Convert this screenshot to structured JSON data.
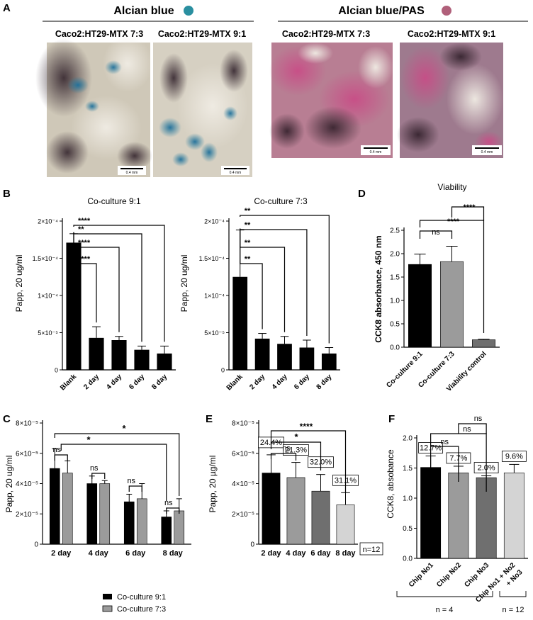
{
  "panel_a": {
    "letter": "A",
    "groups": [
      {
        "title": "Alcian blue",
        "color": "#2a8fa0",
        "images": [
          {
            "label": "Caco2:HT29-MTX 7:3",
            "scale": "0.4 mm"
          },
          {
            "label": "Caco2:HT29-MTX 9:1",
            "scale": "0.4 mm"
          }
        ]
      },
      {
        "title": "Alcian blue/PAS",
        "color": "#b0607a",
        "images": [
          {
            "label": "Caco2:HT29-MTX 7:3",
            "scale": "0.4 mm"
          },
          {
            "label": "Caco2:HT29-MTX 9:1",
            "scale": "0.4 mm"
          }
        ]
      }
    ]
  },
  "colors": {
    "black": "#000000",
    "dark_gray": "#6f6f6f",
    "mid_gray": "#9b9b9b",
    "light_gray": "#d4d4d4"
  },
  "chart_data": [
    {
      "id": "B1",
      "letter": "B",
      "type": "bar",
      "title": "Co-culture 9:1",
      "ylabel": "Papp, 20 ug/ml",
      "ylim": [
        0,
        0.0002
      ],
      "yticks": [
        0,
        5e-05,
        0.0001,
        0.00015,
        0.0002
      ],
      "ytick_labels": [
        "0",
        "5×10⁻⁵",
        "1×10⁻⁴",
        "1.5×10⁻⁴",
        "2×10⁻⁴"
      ],
      "categories": [
        "Blank",
        "2 day",
        "4 day",
        "6 day",
        "8 day"
      ],
      "values": [
        0.000171,
        4.3e-05,
        4e-05,
        2.7e-05,
        2.2e-05
      ],
      "errors": [
        1.2e-05,
        1.5e-05,
        5e-06,
        5e-06,
        1e-05
      ],
      "significance": [
        {
          "from": 0,
          "to": 1,
          "label": "****"
        },
        {
          "from": 0,
          "to": 2,
          "label": "****"
        },
        {
          "from": 0,
          "to": 3,
          "label": "**"
        },
        {
          "from": 0,
          "to": 4,
          "label": "****"
        }
      ]
    },
    {
      "id": "B2",
      "type": "bar",
      "title": "Co-culture 7:3",
      "ylabel": "Papp, 20 ug/ml",
      "ylim": [
        0,
        0.0002
      ],
      "yticks": [
        0,
        5e-05,
        0.0001,
        0.00015,
        0.0002
      ],
      "ytick_labels": [
        "0",
        "5×10⁻⁵",
        "1×10⁻⁴",
        "1.5×10⁻⁴",
        "2×10⁻⁴"
      ],
      "categories": [
        "Blank",
        "2 day",
        "4 day",
        "6 day",
        "8 day"
      ],
      "values": [
        0.000125,
        4.2e-05,
        3.5e-05,
        3e-05,
        2.2e-05
      ],
      "errors": [
        6.3e-05,
        7e-06,
        1e-05,
        1e-05,
        8e-06
      ],
      "significance": [
        {
          "from": 0,
          "to": 1,
          "label": "**"
        },
        {
          "from": 0,
          "to": 2,
          "label": "**"
        },
        {
          "from": 0,
          "to": 3,
          "label": "**"
        },
        {
          "from": 0,
          "to": 4,
          "label": "**"
        }
      ]
    },
    {
      "id": "D",
      "letter": "D",
      "type": "bar",
      "title": "Viability",
      "ylabel": "CCK8 absorbance, 450 nm",
      "ylim": [
        0,
        2.5
      ],
      "yticks": [
        0,
        0.5,
        1.0,
        1.5,
        2.0,
        2.5
      ],
      "ytick_labels": [
        "0.0",
        "0.5",
        "1.0",
        "1.5",
        "2.0",
        "2.5"
      ],
      "categories": [
        "Co-culture 9:1",
        "Co-culture 7:3",
        "Viability control"
      ],
      "values": [
        1.77,
        1.83,
        0.16
      ],
      "errors": [
        0.22,
        0.33,
        0.01
      ],
      "significance": [
        {
          "from": 0,
          "to": 1,
          "label": "ns"
        },
        {
          "from": 0,
          "to": 2,
          "label": "****"
        },
        {
          "from": 1,
          "to": 2,
          "label": "****"
        }
      ]
    },
    {
      "id": "C",
      "letter": "C",
      "type": "bar",
      "title": "",
      "ylabel": "Papp, 20 ug/ml",
      "ylim": [
        0,
        8e-05
      ],
      "yticks": [
        0,
        2e-05,
        4e-05,
        6e-05,
        8e-05
      ],
      "ytick_labels": [
        "0",
        "2×10⁻⁵",
        "4×10⁻⁵",
        "6×10⁻⁵",
        "8×10⁻⁵"
      ],
      "categories": [
        "2 day",
        "4 day",
        "6 day",
        "8 day"
      ],
      "series": [
        {
          "name": "Co-culture 9:1",
          "values": [
            5e-05,
            4e-05,
            2.8e-05,
            1.8e-05
          ],
          "errors": [
            1.3e-05,
            5e-06,
            5e-06,
            4e-06
          ]
        },
        {
          "name": "Co-culture 7:3",
          "values": [
            4.7e-05,
            4e-05,
            3e-05,
            2.2e-05
          ],
          "errors": [
            8e-06,
            2e-06,
            1e-05,
            8e-06
          ]
        }
      ],
      "significance": [
        {
          "label": "ns"
        },
        {
          "label": "ns"
        },
        {
          "label": "ns"
        },
        {
          "label": "ns"
        },
        {
          "label": "*"
        },
        {
          "label": "*"
        }
      ]
    },
    {
      "id": "E",
      "letter": "E",
      "type": "bar",
      "title": "",
      "ylabel": "Papp, 20 µg/ml",
      "ylim": [
        0,
        8e-05
      ],
      "yticks": [
        0,
        2e-05,
        4e-05,
        6e-05,
        8e-05
      ],
      "ytick_labels": [
        "0",
        "2×10⁻⁵",
        "4×10⁻⁵",
        "6×10⁻⁵",
        "8×10⁻⁵"
      ],
      "categories": [
        "2 day",
        "4 day",
        "6 day",
        "8 day"
      ],
      "values": [
        4.7e-05,
        4.4e-05,
        3.5e-05,
        2.6e-05
      ],
      "errors": [
        1.2e-05,
        1e-05,
        1.1e-05,
        8e-06
      ],
      "cv_labels": [
        "24.4%",
        "21.3%",
        "32.0%",
        "31.1%"
      ],
      "significance": [
        {
          "from": 0,
          "to": 1,
          "label": "ns"
        },
        {
          "from": 0,
          "to": 2,
          "label": "*"
        },
        {
          "from": 0,
          "to": 3,
          "label": "****"
        }
      ],
      "n_label": "n=12"
    },
    {
      "id": "F",
      "letter": "F",
      "type": "bar",
      "title": "",
      "ylabel": "CCK8, absobance",
      "ylim": [
        0,
        2.0
      ],
      "yticks": [
        0,
        0.5,
        1.0,
        1.5,
        2.0
      ],
      "ytick_labels": [
        "0.0",
        "0.5",
        "1.0",
        "1.5",
        "2.0"
      ],
      "categories": [
        "Chip No1",
        "Chip No2",
        "Chip No3",
        "Chip No1 + No2 + No3"
      ],
      "values": [
        1.51,
        1.42,
        1.34,
        1.42
      ],
      "errors": [
        0.19,
        0.11,
        0.03,
        0.14
      ],
      "cv_labels": [
        "12.7%",
        "7.7%",
        "2.0%",
        "9.6%"
      ],
      "significance": [
        {
          "from": 0,
          "to": 1,
          "label": "ns"
        },
        {
          "from": 0,
          "to": 2,
          "label": "ns"
        },
        {
          "from": 1,
          "to": 2,
          "label": "ns"
        }
      ],
      "n_labels": [
        "n = 4",
        "n = 12"
      ]
    }
  ]
}
